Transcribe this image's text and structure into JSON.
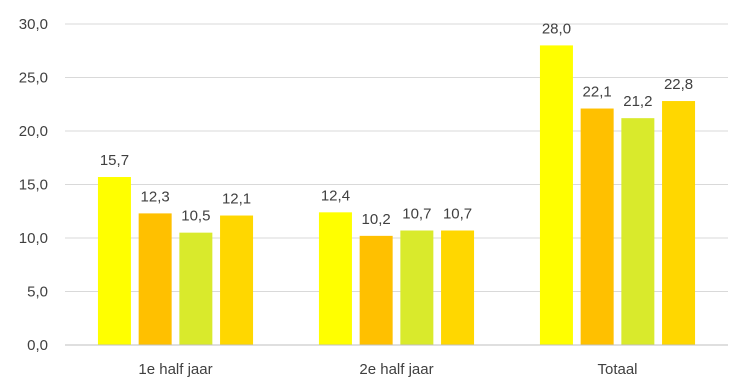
{
  "chart_data": {
    "type": "bar",
    "categories": [
      "1e half jaar",
      "2e half jaar",
      "Totaal"
    ],
    "series": [
      {
        "values": [
          15.7,
          12.4,
          28.0
        ],
        "color": "#FFFF00"
      },
      {
        "values": [
          12.3,
          10.2,
          22.1
        ],
        "color": "#FFC000"
      },
      {
        "values": [
          10.5,
          10.7,
          21.2
        ],
        "color": "#D9EA2C"
      },
      {
        "values": [
          12.1,
          10.7,
          22.8
        ],
        "color": "#FFD700"
      }
    ],
    "data_labels": [
      [
        "15,7",
        "12,4",
        "28,0"
      ],
      [
        "12,3",
        "10,2",
        "22,1"
      ],
      [
        "10,5",
        "10,7",
        "21,2"
      ],
      [
        "12,1",
        "10,7",
        "22,8"
      ]
    ],
    "ylim": [
      0,
      30
    ],
    "yticks": [
      0,
      5,
      10,
      15,
      20,
      25,
      30
    ],
    "ytick_labels": [
      "0,0",
      "5,0",
      "10,0",
      "15,0",
      "20,0",
      "25,0",
      "30,0"
    ],
    "grid": true,
    "legend": "none",
    "title": "",
    "xlabel": "",
    "ylabel": ""
  }
}
